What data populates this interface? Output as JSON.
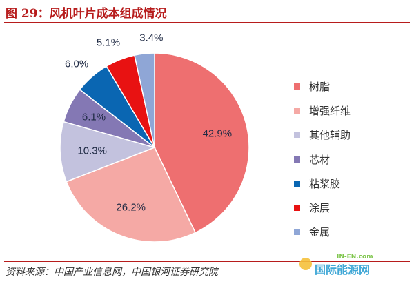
{
  "title": "图 29：风机叶片成本组成情况",
  "source": "资料来源：中国产业信息网，中国银河证券研究院",
  "watermark": {
    "logo": "国际能源网",
    "sub": "IN-EN.com"
  },
  "chart_data": {
    "type": "pie",
    "title": "",
    "start_angle_deg": 0,
    "direction": "clockwise",
    "slices": [
      {
        "name": "树脂",
        "value": 42.9,
        "label": "42.9%",
        "color": "#ee6f70"
      },
      {
        "name": "增强纤维",
        "value": 26.2,
        "label": "26.2%",
        "color": "#f5a9a5"
      },
      {
        "name": "其他辅助",
        "value": 10.3,
        "label": "10.3%",
        "color": "#c3c2de"
      },
      {
        "name": "芯材",
        "value": 6.1,
        "label": "6.1%",
        "color": "#8478b4"
      },
      {
        "name": "粘浆胶",
        "value": 6.0,
        "label": "6.0%",
        "color": "#0a66b2"
      },
      {
        "name": "涂层",
        "value": 5.1,
        "label": "5.1%",
        "color": "#e81212"
      },
      {
        "name": "金属",
        "value": 3.4,
        "label": "3.4%",
        "color": "#8fa6d6"
      }
    ],
    "legend_position": "right"
  }
}
